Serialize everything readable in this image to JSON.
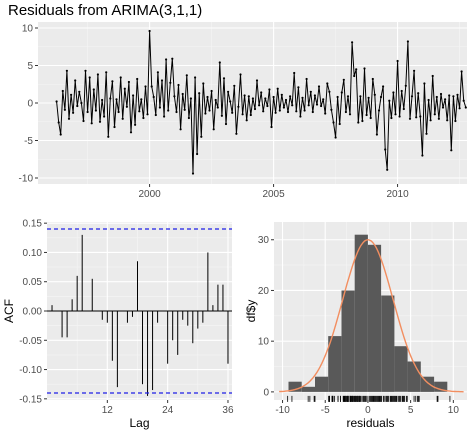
{
  "chart_data": [
    {
      "type": "line",
      "title": "Residuals from ARIMA(3,1,1)",
      "xlabel": "",
      "ylabel": "",
      "xlim": [
        1995.5,
        2012.8
      ],
      "ylim": [
        -10.8,
        10.8
      ],
      "x_ticks": [
        2000,
        2005,
        2010
      ],
      "y_ticks": [
        -10,
        -5,
        0,
        5,
        10
      ],
      "x_start": 1996.25,
      "x_step": 0.0833333,
      "series": [
        {
          "values": [
            0.2,
            -2.6,
            -4.2,
            1.6,
            -0.9,
            4.3,
            -2.1,
            1.1,
            -1.3,
            3.0,
            -0.4,
            1.5,
            0.0,
            -2.4,
            4.3,
            -1.2,
            3.4,
            -2.7,
            1.8,
            -1.0,
            3.8,
            -2.5,
            0.4,
            -1.8,
            4.1,
            -4.5,
            0.6,
            2.9,
            -3.2,
            0.5,
            -1.2,
            3.4,
            -2.1,
            1.9,
            -0.5,
            2.8,
            -3.9,
            1.0,
            -2.9,
            3.2,
            -1.1,
            0.5,
            -2.0,
            2.2,
            -1.5,
            9.6,
            2.2,
            0.8,
            -1.6,
            4.1,
            -0.6,
            3.0,
            -1.8,
            5.8,
            -1.0,
            2.7,
            5.9,
            0.9,
            -1.2,
            2.4,
            -3.5,
            1.2,
            -0.9,
            3.7,
            -2.0,
            0.6,
            -9.4,
            3.4,
            -6.8,
            1.3,
            -4.5,
            2.6,
            -1.4,
            0.8,
            -1.0,
            1.6,
            -3.5,
            0.4,
            -0.6,
            5.4,
            -1.7,
            3.3,
            -2.8,
            1.5,
            0.2,
            -1.3,
            2.3,
            -4.1,
            -0.5,
            3.8,
            -1.5,
            1.0,
            -2.3,
            0.9,
            -1.6,
            0.6,
            -0.8,
            3.0,
            -0.3,
            1.4,
            -1.1,
            0.6,
            -0.4,
            1.8,
            -3.2,
            0.8,
            -1.3,
            1.9,
            -1.0,
            1.1,
            -0.6,
            0.4,
            -1.2,
            0.9,
            -0.3,
            4.0,
            -1.1,
            2.1,
            -1.8,
            0.7,
            -1.0,
            3.2,
            -0.3,
            1.5,
            -1.2,
            1.0,
            -0.2,
            2.2,
            -0.4,
            0.5,
            -1.4,
            2.6,
            1.5,
            -0.9,
            -2.6,
            -4.6,
            0.8,
            -2.8,
            1.4,
            3.1,
            -1.2,
            0.9,
            -1.5,
            8.1,
            3.6,
            4.5,
            -2.6,
            0.9,
            -2.4,
            4.6,
            -1.6,
            0.7,
            -2.0,
            3.2,
            1.1,
            -4.2,
            -1.0,
            0.8,
            2.2,
            -6.2,
            -8.9,
            0.3,
            -2.0,
            1.4,
            -1.5,
            5.6,
            -1.8,
            1.6,
            -0.8,
            2.3,
            8.2,
            -2.1,
            0.9,
            4.3,
            -1.9,
            1.3,
            -1.8,
            -7.0,
            2.6,
            -4.1,
            0.4,
            -2.3,
            3.6,
            -1.5,
            0.8,
            -2.1,
            1.2,
            -0.6,
            0.5,
            -2.3,
            1.0,
            -6.3,
            0.9,
            -2.4,
            1.1,
            -0.7,
            4.2,
            0.3,
            -0.6
          ]
        }
      ]
    },
    {
      "type": "bar",
      "title": "",
      "xlabel": "Lag",
      "ylabel": "ACF",
      "xlim": [
        0,
        36.8
      ],
      "ylim": [
        -0.152,
        0.152
      ],
      "x_ticks": [
        12,
        24,
        36
      ],
      "y_ticks": [
        -0.15,
        -0.1,
        -0.05,
        0.0,
        0.05,
        0.1,
        0.15
      ],
      "y_tick_labels": [
        "-0.15",
        "-0.10",
        "-0.05",
        "0.00",
        "0.05",
        "0.10",
        "0.15"
      ],
      "confidence_bound": 0.14,
      "lags": [
        1,
        2,
        3,
        4,
        5,
        6,
        7,
        8,
        9,
        10,
        11,
        12,
        13,
        14,
        15,
        16,
        17,
        18,
        19,
        20,
        21,
        22,
        23,
        24,
        25,
        26,
        27,
        28,
        29,
        30,
        31,
        32,
        33,
        34,
        35,
        36
      ],
      "values": [
        0.01,
        0.0,
        -0.045,
        -0.045,
        0.02,
        0.06,
        0.13,
        0.0,
        0.055,
        0.0,
        -0.015,
        -0.02,
        -0.085,
        -0.13,
        0.0,
        -0.02,
        -0.01,
        0.085,
        -0.125,
        -0.145,
        -0.135,
        -0.02,
        0.0,
        -0.09,
        -0.05,
        -0.075,
        -0.015,
        -0.025,
        -0.055,
        -0.03,
        -0.02,
        0.1,
        0.01,
        0.045,
        0.045,
        -0.09
      ]
    },
    {
      "type": "bar",
      "title": "",
      "xlabel": "residuals",
      "ylabel": "df$y",
      "xlim": [
        -11,
        11.6
      ],
      "ylim": [
        -1.6,
        33.5
      ],
      "x_ticks": [
        -10,
        -5,
        0,
        5,
        10
      ],
      "y_ticks": [
        0,
        10,
        20,
        30
      ],
      "bin_width": 1.55,
      "bin_edges": [
        -9.3,
        -7.75,
        -6.2,
        -4.65,
        -3.1,
        -1.55,
        0.0,
        1.55,
        3.1,
        4.65,
        6.2,
        7.75,
        9.3
      ],
      "counts": [
        2,
        1,
        3,
        11,
        20,
        31,
        29,
        19,
        9,
        6,
        3,
        2
      ],
      "density_curve": {
        "mean": 0,
        "sd": 2.95,
        "peak": 30
      },
      "rug": [
        -9.4,
        -8.9,
        -7.0,
        -6.8,
        -6.3,
        -6.2,
        -4.6,
        -4.5,
        -4.5,
        -4.2,
        -4.2,
        -4.1,
        -4.1,
        -3.9,
        -3.5,
        -3.5,
        -3.2,
        -3.2,
        -2.9,
        -2.8,
        -2.8,
        -2.7,
        -2.6,
        -2.6,
        -2.5,
        -2.4,
        -2.4,
        -2.3,
        -2.3,
        -2.1,
        -2.1,
        -2.0,
        -2.0,
        -1.9,
        -1.8,
        -1.8,
        -1.7,
        -1.6,
        -1.5,
        -1.5,
        -1.4,
        -1.3,
        -1.2,
        -1.2,
        -1.1,
        -1.0,
        -1.0,
        -0.9,
        -0.8,
        -0.6,
        -0.5,
        -0.4,
        -0.3,
        -0.2,
        0.0,
        0.2,
        0.3,
        0.4,
        0.5,
        0.6,
        0.7,
        0.8,
        0.9,
        1.0,
        1.1,
        1.2,
        1.3,
        1.4,
        1.5,
        1.6,
        1.8,
        1.9,
        2.1,
        2.2,
        2.3,
        2.4,
        2.6,
        2.7,
        2.8,
        2.9,
        3.0,
        3.1,
        3.2,
        3.3,
        3.4,
        3.6,
        3.7,
        3.8,
        4.0,
        4.1,
        4.2,
        4.3,
        4.5,
        4.6,
        5.4,
        5.6,
        5.8,
        5.9,
        6.0,
        8.1,
        8.2,
        9.6
      ]
    }
  ]
}
